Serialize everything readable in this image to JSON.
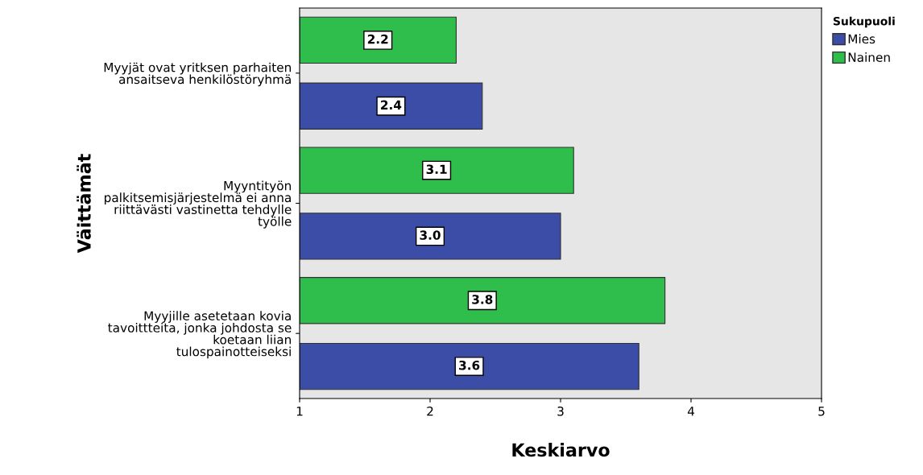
{
  "chart_data": {
    "type": "bar",
    "orientation": "horizontal",
    "xlabel": "Keskiarvo",
    "ylabel": "Väittämät",
    "legend_title": "Sukupuoli",
    "legend": "top right",
    "categories": [
      "Myyjät ovat yritksen parhaiten\nansaitseva henkilöstöryhmä",
      "Myyntityön\npalkitsemisjärjestelmä ei anna\nriittävästi vastinetta tehdylle\ntyölle",
      "Myyjille asetetaan kovia\ntavoittteita, jonka johdosta se\nkoetaan liian\ntulospainotteiseksi"
    ],
    "series": [
      {
        "name": "Mies",
        "color": "#3b4da6",
        "values": [
          2.4,
          3.0,
          3.6
        ],
        "value_labels": [
          "2.4",
          "3.0",
          "3.6"
        ]
      },
      {
        "name": "Nainen",
        "color": "#2fbe4b",
        "values": [
          2.2,
          3.1,
          3.8
        ],
        "value_labels": [
          "2.2",
          "3.1",
          "3.8"
        ]
      }
    ],
    "xlim": [
      1,
      5
    ],
    "xticks": [
      1,
      2,
      3,
      4,
      5
    ],
    "grid": false
  }
}
